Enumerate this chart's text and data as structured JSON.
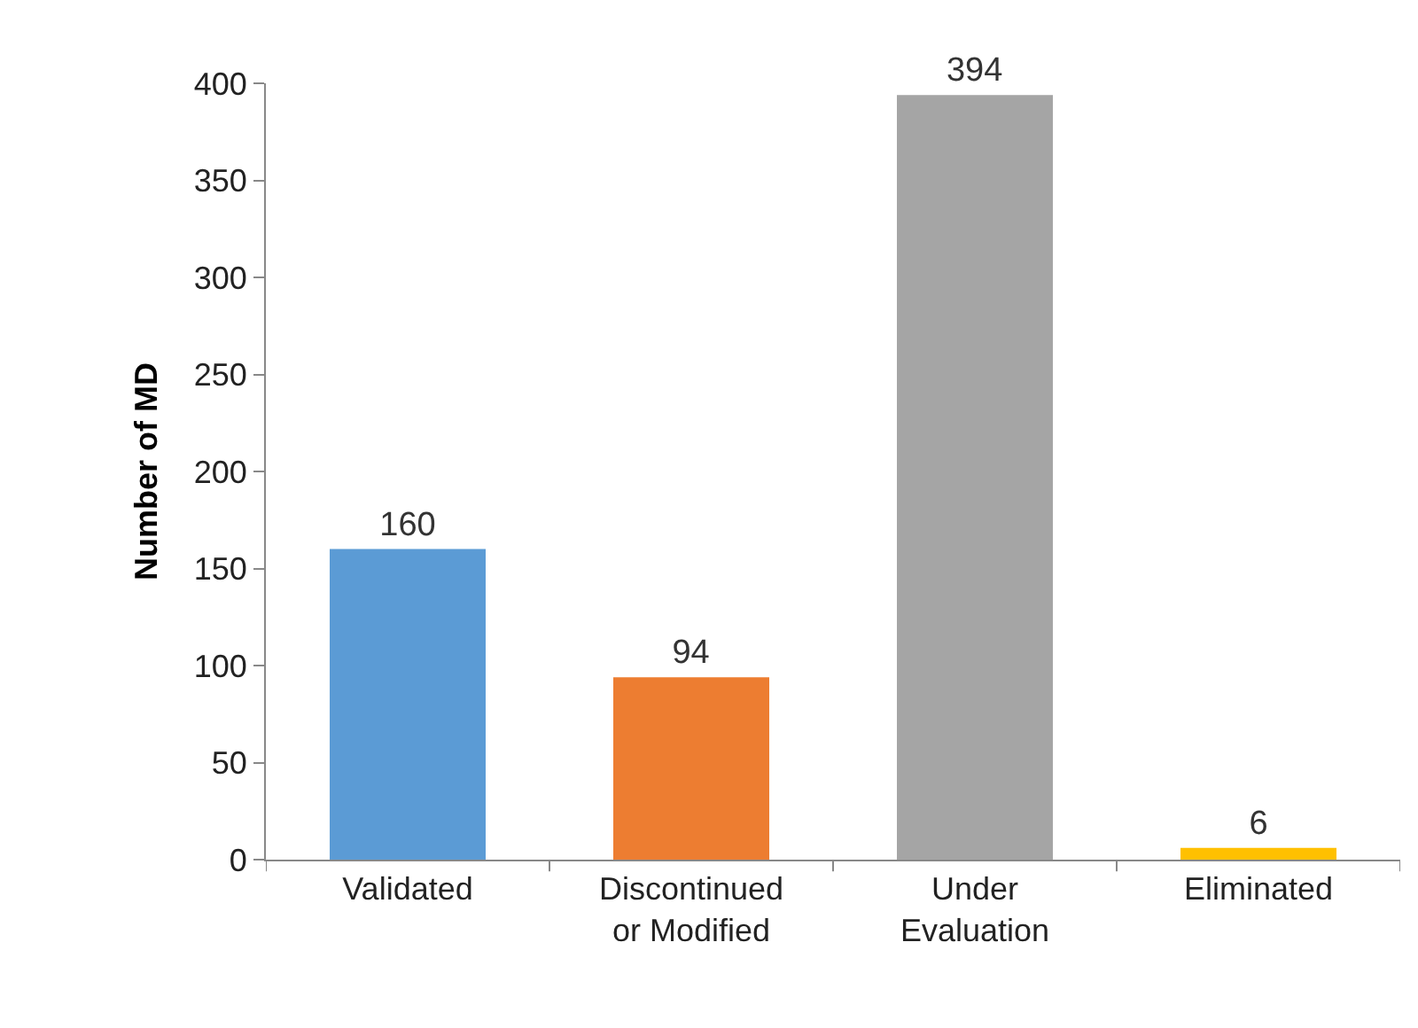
{
  "chart_data": {
    "type": "bar",
    "ylabel": "Number of MD",
    "categories": [
      "Validated",
      "Discontinued or Modified",
      "Under Evaluation",
      "Eliminated"
    ],
    "values": [
      160,
      94,
      394,
      6
    ],
    "colors": [
      "#5b9bd5",
      "#ed7d31",
      "#a5a5a5",
      "#ffc000"
    ],
    "ylim": [
      0,
      400
    ],
    "yticks": [
      0,
      50,
      100,
      150,
      200,
      250,
      300,
      350,
      400
    ],
    "data_labels": true
  }
}
